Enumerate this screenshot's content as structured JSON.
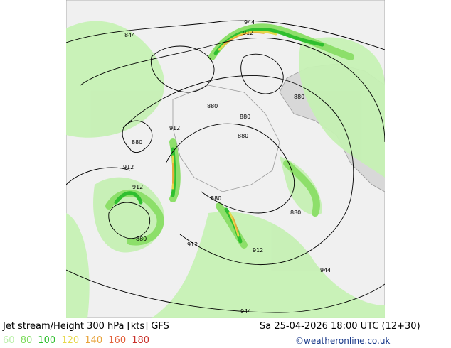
{
  "map": {
    "contour_labels": [
      "944",
      "912",
      "880",
      "880",
      "880",
      "880",
      "880",
      "880",
      "912",
      "912",
      "912",
      "912",
      "880",
      "912",
      "880",
      "944",
      "944",
      "844"
    ]
  },
  "footer": {
    "title": "Jet stream/Height 300 hPa [kts] GFS",
    "date": "Sa 25-04-2026 18:00 UTC (12+30)",
    "credit": "©weatheronline.co.uk",
    "legend": [
      {
        "label": "60",
        "color": "#b9f0a8"
      },
      {
        "label": "80",
        "color": "#7bdc5a"
      },
      {
        "label": "100",
        "color": "#2fbf2f"
      },
      {
        "label": "120",
        "color": "#e6d84a"
      },
      {
        "label": "140",
        "color": "#e8a23a"
      },
      {
        "label": "160",
        "color": "#e2603a"
      },
      {
        "label": "180",
        "color": "#c8302a"
      }
    ]
  },
  "colors": {
    "ocean": "#cfcfcf",
    "land": "#f2f2f2",
    "coast": "#9a9a9a",
    "jet_60": "#b9f0a8",
    "jet_80": "#7bdc5a",
    "jet_100": "#2fbf2f",
    "jet_120": "#e6d84a",
    "jet_140": "#e8a23a"
  }
}
